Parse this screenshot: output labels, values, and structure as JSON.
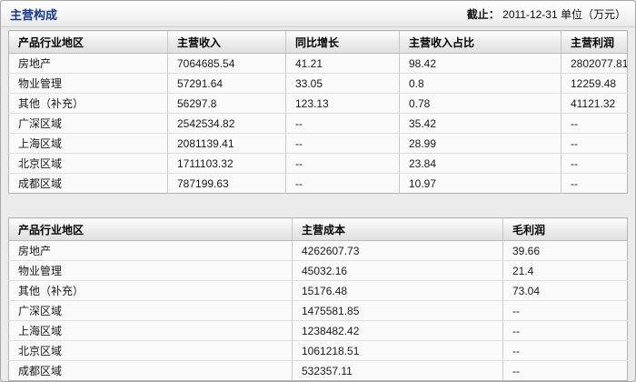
{
  "header": {
    "title": "主营构成",
    "asof_label": "截止：",
    "asof_value": "2011-12-31",
    "unit": "单位（万元）"
  },
  "colors": {
    "title_text": "#16388e",
    "table_border": "#b3b3b3",
    "header_bg_top": "#fdfdfd",
    "header_bg_bottom": "#e0e0e0",
    "row_bg": "#fafafa",
    "page_bg": "#ebebeb"
  },
  "tables": [
    {
      "headers": [
        "产品行业地区",
        "主营收入",
        "同比增长",
        "主营收入占比",
        "主营利润"
      ],
      "rows": [
        [
          "房地产",
          "7064685.54",
          "41.21",
          "98.42",
          "2802077.81"
        ],
        [
          "物业管理",
          "57291.64",
          "33.05",
          "0.8",
          "12259.48"
        ],
        [
          "其他（补充）",
          "56297.8",
          "123.13",
          "0.78",
          "41121.32"
        ],
        [
          "广深区域",
          "2542534.82",
          "--",
          "35.42",
          "--"
        ],
        [
          "上海区域",
          "2081139.41",
          "--",
          "28.99",
          "--"
        ],
        [
          "北京区域",
          "1711103.32",
          "--",
          "23.84",
          "--"
        ],
        [
          "成都区域",
          "787199.63",
          "--",
          "10.97",
          "--"
        ]
      ]
    },
    {
      "headers": [
        "产品行业地区",
        "主营成本",
        "毛利润"
      ],
      "rows": [
        [
          "房地产",
          "4262607.73",
          "39.66"
        ],
        [
          "物业管理",
          "45032.16",
          "21.4"
        ],
        [
          "其他（补充）",
          "15176.48",
          "73.04"
        ],
        [
          "广深区域",
          "1475581.85",
          "--"
        ],
        [
          "上海区域",
          "1238482.42",
          "--"
        ],
        [
          "北京区域",
          "1061218.51",
          "--"
        ],
        [
          "成都区域",
          "532357.11",
          "--"
        ]
      ]
    }
  ]
}
